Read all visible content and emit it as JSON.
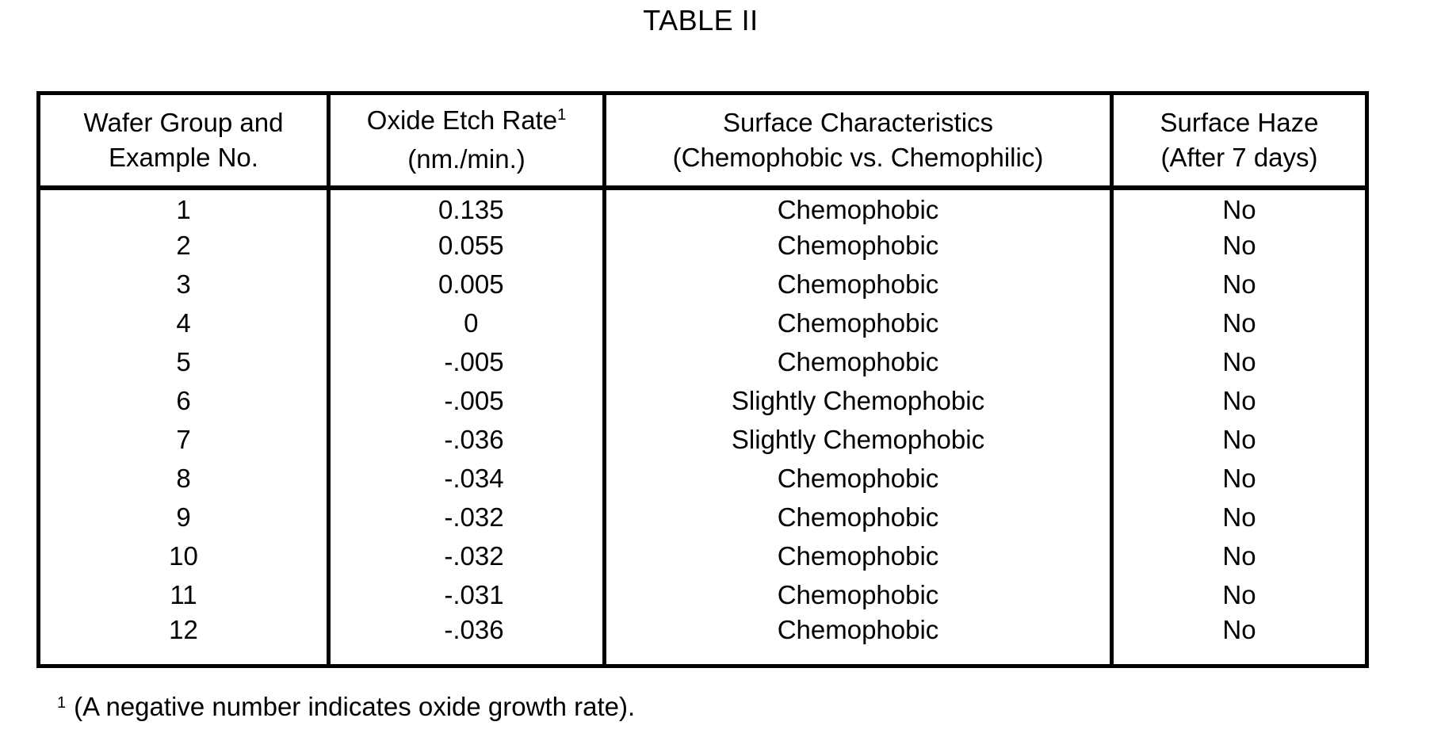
{
  "title": "TABLE II",
  "table": {
    "columns": [
      {
        "line1": "Wafer Group and",
        "line2": "Example No."
      },
      {
        "line1": "Oxide Etch Rate",
        "superscript": "1",
        "line2": "(nm./min.)"
      },
      {
        "line1": "Surface Characteristics",
        "line2": "(Chemophobic vs. Chemophilic)"
      },
      {
        "line1": "Surface Haze",
        "line2": "(After 7 days)"
      }
    ],
    "rows": [
      {
        "example": "1",
        "etch_rate": "0.135",
        "surface": "Chemophobic",
        "haze": "No"
      },
      {
        "example": "2",
        "etch_rate": "0.055",
        "surface": "Chemophobic",
        "haze": "No"
      },
      {
        "example": "3",
        "etch_rate": "0.005",
        "surface": "Chemophobic",
        "haze": "No"
      },
      {
        "example": "4",
        "etch_rate": "0",
        "surface": "Chemophobic",
        "haze": "No"
      },
      {
        "example": "5",
        "etch_rate": "-.005",
        "surface": "Chemophobic",
        "haze": "No"
      },
      {
        "example": "6",
        "etch_rate": "-.005",
        "surface": "Slightly Chemophobic",
        "haze": "No"
      },
      {
        "example": "7",
        "etch_rate": "-.036",
        "surface": "Slightly Chemophobic",
        "haze": "No"
      },
      {
        "example": "8",
        "etch_rate": "-.034",
        "surface": "Chemophobic",
        "haze": "No"
      },
      {
        "example": "9",
        "etch_rate": "-.032",
        "surface": "Chemophobic",
        "haze": "No"
      },
      {
        "example": "10",
        "etch_rate": "-.032",
        "surface": "Chemophobic",
        "haze": "No"
      },
      {
        "example": "11",
        "etch_rate": "-.031",
        "surface": "Chemophobic",
        "haze": "No"
      },
      {
        "example": "12",
        "etch_rate": "-.036",
        "surface": "Chemophobic",
        "haze": "No"
      }
    ]
  },
  "footnote": {
    "marker": "1",
    "text": "(A negative number indicates oxide growth rate)."
  },
  "colors": {
    "text": "#000000",
    "background": "#ffffff",
    "border": "#000000"
  }
}
